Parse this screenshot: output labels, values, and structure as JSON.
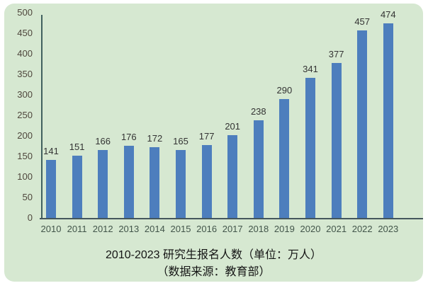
{
  "page": {
    "background_color": "#ffffff",
    "panel_color": "#d6e8d1"
  },
  "chart_data": {
    "type": "bar",
    "title": "2010-2023 研究生报名人数（单位：万人）",
    "subtitle": "（数据来源：教育部）",
    "categories": [
      "2010",
      "2011",
      "2012",
      "2013",
      "2014",
      "2015",
      "2016",
      "2017",
      "2018",
      "2019",
      "2020",
      "2021",
      "2022",
      "2023"
    ],
    "values": [
      141,
      151,
      166,
      176,
      172,
      165,
      177,
      201,
      238,
      290,
      341,
      377,
      457,
      474
    ],
    "xlabel": "",
    "ylabel": "",
    "ylim": [
      0,
      500
    ],
    "ytick_step": 50,
    "grid": false,
    "legend": false,
    "data_labels": true,
    "bar_color": "#4d7ebd",
    "axis_color": "#41605f",
    "ytick_label_color": "#4e463c",
    "category_label_color": "#42554a",
    "value_label_color": "#333333",
    "title_color": "#141414"
  }
}
